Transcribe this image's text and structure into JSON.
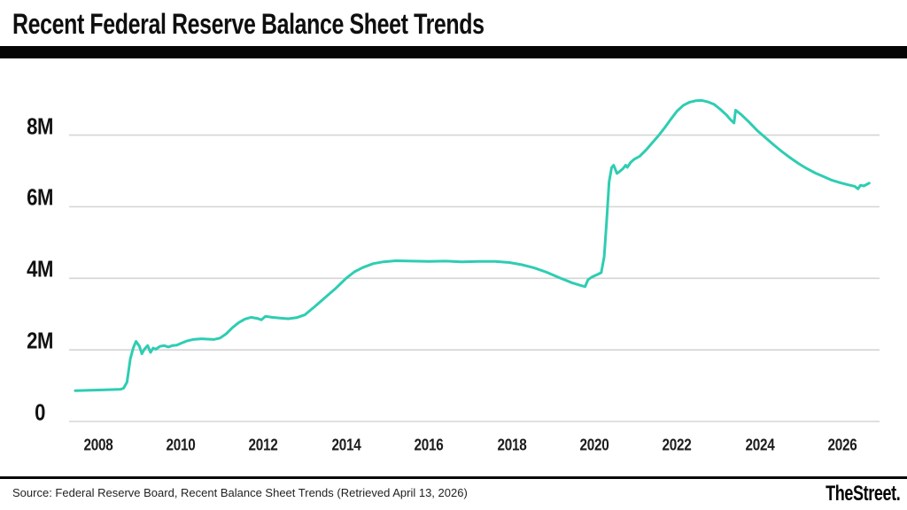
{
  "header": {
    "title": "Recent Federal Reserve Balance Sheet Trends"
  },
  "footer": {
    "source": "Source: Federal Reserve Board, Recent Balance Sheet Trends (Retrieved April 13, 2026)",
    "brand": "TheStreet."
  },
  "colors": {
    "line": "#2ecdb2",
    "grid": "#d5d5d5",
    "title_text": "#0f0f0f",
    "divider": "#050505"
  },
  "chart_data": {
    "type": "line",
    "title": "Recent Federal Reserve Balance Sheet Trends",
    "xlabel": "",
    "ylabel": "",
    "legend": "none",
    "grid": "horizontal",
    "x_range": [
      2007.3,
      2026.9
    ],
    "y_range": [
      0,
      9.55
    ],
    "x_ticks": {
      "values": [
        2008,
        2010,
        2012,
        2014,
        2016,
        2018,
        2020,
        2022,
        2024,
        2026
      ],
      "labels": [
        "2008",
        "2010",
        "2012",
        "2014",
        "2016",
        "2018",
        "2020",
        "2022",
        "2024",
        "2026"
      ]
    },
    "y_ticks": {
      "values": [
        0,
        2,
        4,
        6,
        8
      ],
      "labels": [
        "0",
        "2M",
        "4M",
        "6M",
        "8M"
      ]
    },
    "line_color": "#2ecdb2",
    "points": [
      [
        2007.45,
        0.86
      ],
      [
        2007.8,
        0.87
      ],
      [
        2008.1,
        0.88
      ],
      [
        2008.35,
        0.89
      ],
      [
        2008.55,
        0.9
      ],
      [
        2008.62,
        0.93
      ],
      [
        2008.7,
        1.1
      ],
      [
        2008.78,
        1.75
      ],
      [
        2008.85,
        2.05
      ],
      [
        2008.92,
        2.24
      ],
      [
        2009.0,
        2.1
      ],
      [
        2009.06,
        1.89
      ],
      [
        2009.12,
        2.02
      ],
      [
        2009.2,
        2.12
      ],
      [
        2009.27,
        1.93
      ],
      [
        2009.33,
        2.05
      ],
      [
        2009.4,
        2.02
      ],
      [
        2009.5,
        2.1
      ],
      [
        2009.6,
        2.12
      ],
      [
        2009.7,
        2.08
      ],
      [
        2009.8,
        2.12
      ],
      [
        2009.9,
        2.13
      ],
      [
        2010.0,
        2.18
      ],
      [
        2010.15,
        2.25
      ],
      [
        2010.3,
        2.29
      ],
      [
        2010.5,
        2.31
      ],
      [
        2010.65,
        2.3
      ],
      [
        2010.8,
        2.29
      ],
      [
        2010.95,
        2.33
      ],
      [
        2011.1,
        2.45
      ],
      [
        2011.25,
        2.62
      ],
      [
        2011.4,
        2.76
      ],
      [
        2011.55,
        2.86
      ],
      [
        2011.7,
        2.91
      ],
      [
        2011.85,
        2.88
      ],
      [
        2011.95,
        2.84
      ],
      [
        2012.05,
        2.94
      ],
      [
        2012.2,
        2.91
      ],
      [
        2012.4,
        2.89
      ],
      [
        2012.6,
        2.87
      ],
      [
        2012.8,
        2.9
      ],
      [
        2013.0,
        2.98
      ],
      [
        2013.25,
        3.22
      ],
      [
        2013.5,
        3.47
      ],
      [
        2013.75,
        3.72
      ],
      [
        2014.0,
        4.0
      ],
      [
        2014.2,
        4.18
      ],
      [
        2014.4,
        4.3
      ],
      [
        2014.65,
        4.41
      ],
      [
        2014.9,
        4.46
      ],
      [
        2015.2,
        4.49
      ],
      [
        2015.6,
        4.48
      ],
      [
        2016.0,
        4.47
      ],
      [
        2016.4,
        4.48
      ],
      [
        2016.8,
        4.46
      ],
      [
        2017.2,
        4.47
      ],
      [
        2017.6,
        4.47
      ],
      [
        2017.95,
        4.44
      ],
      [
        2018.25,
        4.38
      ],
      [
        2018.55,
        4.29
      ],
      [
        2018.85,
        4.17
      ],
      [
        2019.15,
        4.02
      ],
      [
        2019.45,
        3.88
      ],
      [
        2019.7,
        3.79
      ],
      [
        2019.78,
        3.77
      ],
      [
        2019.85,
        3.96
      ],
      [
        2019.95,
        4.04
      ],
      [
        2020.1,
        4.12
      ],
      [
        2020.17,
        4.16
      ],
      [
        2020.24,
        4.6
      ],
      [
        2020.3,
        5.6
      ],
      [
        2020.36,
        6.7
      ],
      [
        2020.42,
        7.09
      ],
      [
        2020.47,
        7.16
      ],
      [
        2020.55,
        6.93
      ],
      [
        2020.62,
        6.99
      ],
      [
        2020.7,
        7.07
      ],
      [
        2020.76,
        7.16
      ],
      [
        2020.8,
        7.1
      ],
      [
        2020.88,
        7.24
      ],
      [
        2020.96,
        7.32
      ],
      [
        2021.1,
        7.41
      ],
      [
        2021.25,
        7.58
      ],
      [
        2021.4,
        7.78
      ],
      [
        2021.55,
        7.98
      ],
      [
        2021.7,
        8.2
      ],
      [
        2021.85,
        8.44
      ],
      [
        2022.0,
        8.67
      ],
      [
        2022.15,
        8.83
      ],
      [
        2022.3,
        8.92
      ],
      [
        2022.45,
        8.96
      ],
      [
        2022.6,
        8.97
      ],
      [
        2022.75,
        8.93
      ],
      [
        2022.9,
        8.86
      ],
      [
        2023.05,
        8.72
      ],
      [
        2023.2,
        8.56
      ],
      [
        2023.3,
        8.43
      ],
      [
        2023.38,
        8.34
      ],
      [
        2023.42,
        8.7
      ],
      [
        2023.55,
        8.58
      ],
      [
        2023.75,
        8.36
      ],
      [
        2023.95,
        8.12
      ],
      [
        2024.15,
        7.92
      ],
      [
        2024.35,
        7.72
      ],
      [
        2024.55,
        7.53
      ],
      [
        2024.75,
        7.36
      ],
      [
        2024.95,
        7.2
      ],
      [
        2025.15,
        7.06
      ],
      [
        2025.35,
        6.94
      ],
      [
        2025.55,
        6.84
      ],
      [
        2025.75,
        6.74
      ],
      [
        2025.95,
        6.67
      ],
      [
        2026.15,
        6.61
      ],
      [
        2026.3,
        6.57
      ],
      [
        2026.38,
        6.5
      ],
      [
        2026.44,
        6.6
      ],
      [
        2026.52,
        6.58
      ],
      [
        2026.65,
        6.66
      ]
    ]
  }
}
